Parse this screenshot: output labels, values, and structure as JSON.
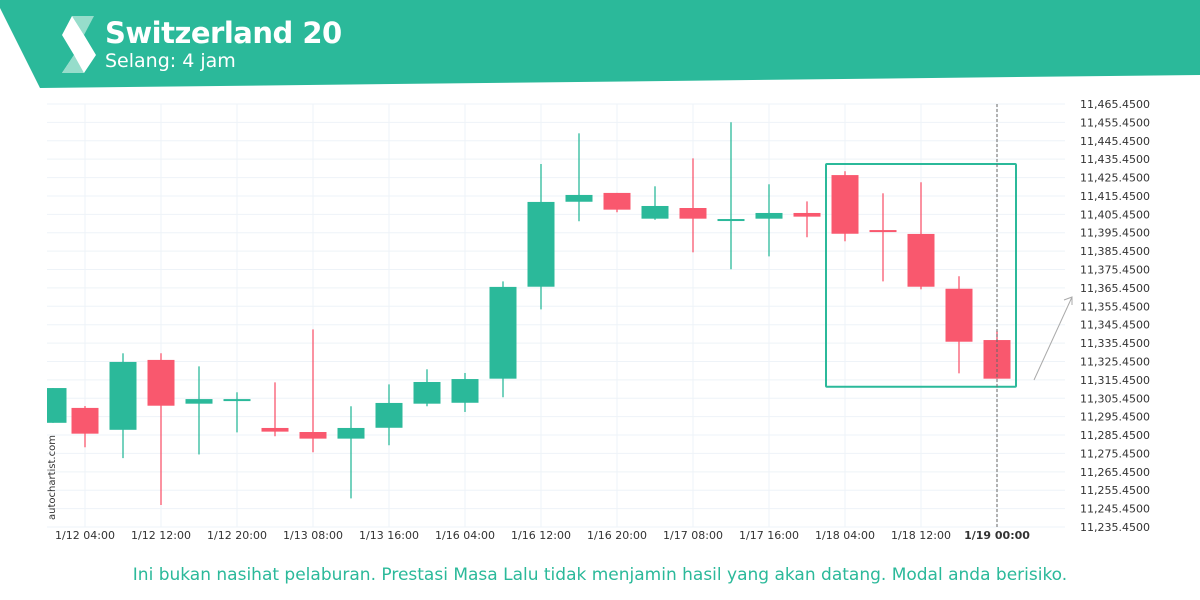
{
  "header": {
    "title": "Switzerland 20",
    "subtitle": "Selang: 4 jam",
    "brand_color": "#2bb99a"
  },
  "footer": {
    "disclaimer": "Ini bukan nasihat pelaburan. Prestasi Masa Lalu tidak menjamin hasil yang akan datang. Modal anda berisiko."
  },
  "watermark": "autochartist.com",
  "chart_data": {
    "type": "candlestick",
    "title": "Switzerland 20",
    "ylim": [
      11235.45,
      11465.45
    ],
    "y_ticks": [
      "11,465.4500",
      "11,455.4500",
      "11,445.4500",
      "11,435.4500",
      "11,425.4500",
      "11,415.4500",
      "11,405.4500",
      "11,395.4500",
      "11,385.4500",
      "11,375.4500",
      "11,365.4500",
      "11,355.4500",
      "11,345.4500",
      "11,335.4500",
      "11,325.4500",
      "11,315.4500",
      "11,305.4500",
      "11,295.4500",
      "11,285.4500",
      "11,275.4500",
      "11,265.4500",
      "11,255.4500",
      "11,245.4500",
      "11,235.4500"
    ],
    "x_ticks": [
      {
        "i": 1,
        "label": "1/12 04:00"
      },
      {
        "i": 3,
        "label": "1/12 12:00"
      },
      {
        "i": 5,
        "label": "1/12 20:00"
      },
      {
        "i": 7,
        "label": "1/13 08:00"
      },
      {
        "i": 9,
        "label": "1/13 16:00"
      },
      {
        "i": 11,
        "label": "1/16 04:00"
      },
      {
        "i": 13,
        "label": "1/16 12:00"
      },
      {
        "i": 15,
        "label": "1/16 20:00"
      },
      {
        "i": 17,
        "label": "1/17 08:00"
      },
      {
        "i": 19,
        "label": "1/17 16:00"
      },
      {
        "i": 21,
        "label": "1/18 04:00"
      },
      {
        "i": 23,
        "label": "1/18 12:00"
      },
      {
        "i": 25,
        "label": "1/19 00:00",
        "bold": true
      }
    ],
    "candles": [
      {
        "o": 11292.1,
        "h": 11311.0,
        "l": 11292.1,
        "c": 11311.0
      },
      {
        "o": 11300.2,
        "h": 11301.2,
        "l": 11278.8,
        "c": 11286.2
      },
      {
        "o": 11288.3,
        "h": 11329.9,
        "l": 11272.9,
        "c": 11325.2
      },
      {
        "o": 11326.3,
        "h": 11329.9,
        "l": 11247.4,
        "c": 11301.4
      },
      {
        "o": 11302.5,
        "h": 11322.8,
        "l": 11274.9,
        "c": 11305.0
      },
      {
        "o": 11304.1,
        "h": 11308.7,
        "l": 11286.9,
        "c": 11305.0
      },
      {
        "o": 11289.3,
        "h": 11314.1,
        "l": 11284.8,
        "c": 11287.3
      },
      {
        "o": 11287.1,
        "h": 11342.9,
        "l": 11276.1,
        "c": 11283.5
      },
      {
        "o": 11283.5,
        "h": 11301.1,
        "l": 11251.0,
        "c": 11289.3
      },
      {
        "o": 11289.4,
        "h": 11313.0,
        "l": 11279.9,
        "c": 11302.9
      },
      {
        "o": 11302.5,
        "h": 11321.2,
        "l": 11301.1,
        "c": 11314.3
      },
      {
        "o": 11303.0,
        "h": 11319.2,
        "l": 11298.0,
        "c": 11315.9
      },
      {
        "o": 11316.1,
        "h": 11369.0,
        "l": 11306.0,
        "c": 11366.0
      },
      {
        "o": 11366.1,
        "h": 11432.8,
        "l": 11353.8,
        "c": 11412.2
      },
      {
        "o": 11412.3,
        "h": 11449.5,
        "l": 11401.7,
        "c": 11416.0
      },
      {
        "o": 11417.1,
        "h": 11417.1,
        "l": 11406.6,
        "c": 11408.0
      },
      {
        "o": 11403.1,
        "h": 11420.7,
        "l": 11402.5,
        "c": 11410.0
      },
      {
        "o": 11408.9,
        "h": 11435.9,
        "l": 11384.8,
        "c": 11403.1
      },
      {
        "o": 11402.0,
        "h": 11455.5,
        "l": 11375.6,
        "c": 11402.9
      },
      {
        "o": 11403.1,
        "h": 11421.8,
        "l": 11382.6,
        "c": 11406.2
      },
      {
        "o": 11406.2,
        "h": 11412.5,
        "l": 11393.0,
        "c": 11404.2
      },
      {
        "o": 11426.8,
        "h": 11428.9,
        "l": 11390.8,
        "c": 11394.9
      },
      {
        "o": 11396.9,
        "h": 11416.9,
        "l": 11369.0,
        "c": 11396.0
      },
      {
        "o": 11394.8,
        "h": 11422.9,
        "l": 11364.7,
        "c": 11366.1
      },
      {
        "o": 11365.0,
        "h": 11371.8,
        "l": 11319.0,
        "c": 11336.2
      },
      {
        "o": 11337.1,
        "h": 11342.0,
        "l": 11316.1,
        "c": 11316.1
      }
    ],
    "pattern_box": {
      "from_index": 20.5,
      "to_index": 26,
      "top": 11432.8,
      "bottom": 11311.7
    },
    "current_time_index": 25,
    "colors": {
      "up": "#2bb99a",
      "down": "#f9586e",
      "box": "#2bb99a",
      "grid": "#eef3f8"
    }
  }
}
